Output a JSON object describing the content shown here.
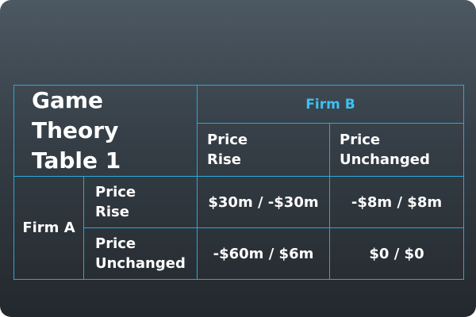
{
  "table": {
    "title_line1": "Game Theory",
    "title_line2": "Table 1",
    "column_player": "Firm B",
    "row_player": "Firm A",
    "column_strategies": [
      {
        "line1": "Price",
        "line2": "Rise"
      },
      {
        "line1": "Price",
        "line2": "Unchanged"
      }
    ],
    "rows": [
      {
        "line1": "Price",
        "line2": "Rise",
        "payoffs": [
          "$30m / -$30m",
          "-$8m / $8m"
        ]
      },
      {
        "line1": "Price",
        "line2": "Unchanged",
        "payoffs": [
          "-$60m / $6m",
          "$0 / $0"
        ]
      }
    ]
  }
}
